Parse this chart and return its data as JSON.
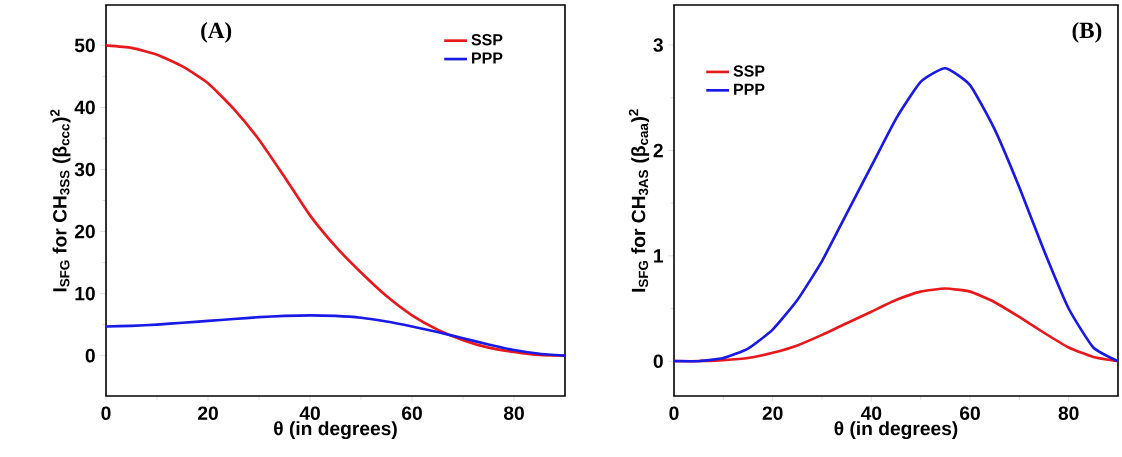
{
  "chart_data": [
    {
      "type": "line",
      "xlabel": "θ (in degrees)",
      "ylabel": "I$_{SFG}$ for CH$_{3SS}$ (β$_{ccc}$)$^{2}$",
      "annotations": [
        "(A)"
      ],
      "x": [
        0,
        5,
        10,
        15,
        20,
        25,
        30,
        35,
        40,
        45,
        50,
        55,
        60,
        65,
        70,
        75,
        80,
        85,
        90
      ],
      "series": [
        {
          "name": "SSP",
          "color": "#e8191c",
          "values": [
            50,
            49.6,
            48.5,
            46.6,
            43.9,
            39.8,
            34.8,
            28.8,
            22.6,
            17.6,
            13.4,
            9.6,
            6.5,
            4.2,
            2.5,
            1.3,
            0.6,
            0.1,
            0
          ]
        },
        {
          "name": "PPP",
          "color": "#1a1ae6",
          "values": [
            4.7,
            4.8,
            5.0,
            5.3,
            5.6,
            5.9,
            6.2,
            6.4,
            6.5,
            6.4,
            6.1,
            5.5,
            4.7,
            3.8,
            2.8,
            1.8,
            0.9,
            0.3,
            0
          ]
        }
      ],
      "xlim": [
        0,
        90
      ],
      "ylim": [
        -6.5,
        56.5
      ],
      "xticks": [
        0,
        20,
        40,
        60,
        80
      ],
      "yticks": [
        0,
        10,
        20,
        30,
        40,
        50
      ],
      "legend": "top right"
    },
    {
      "type": "line",
      "xlabel": "θ (in degrees)",
      "ylabel": "I$_{SFG}$ for CH$_{3AS}$ (β$_{caa}$)$^{2}$",
      "annotations": [
        "(B)"
      ],
      "x": [
        0,
        5,
        10,
        15,
        20,
        25,
        30,
        35,
        40,
        45,
        50,
        55,
        60,
        65,
        70,
        75,
        80,
        85,
        90
      ],
      "series": [
        {
          "name": "SSP",
          "color": "#e8191c",
          "values": [
            0,
            0,
            0.01,
            0.03,
            0.08,
            0.15,
            0.25,
            0.36,
            0.47,
            0.58,
            0.66,
            0.69,
            0.66,
            0.56,
            0.42,
            0.27,
            0.13,
            0.04,
            0
          ]
        },
        {
          "name": "PPP",
          "color": "#1a1ae6",
          "values": [
            0,
            0,
            0.03,
            0.12,
            0.3,
            0.58,
            0.95,
            1.4,
            1.85,
            2.3,
            2.65,
            2.78,
            2.62,
            2.2,
            1.65,
            1.05,
            0.5,
            0.13,
            0
          ]
        }
      ],
      "xlim": [
        0,
        90
      ],
      "ylim": [
        -0.33,
        3.38
      ],
      "xticks": [
        0,
        20,
        40,
        60,
        80
      ],
      "yticks": [
        0,
        1,
        2,
        3
      ],
      "legend": "top left"
    }
  ]
}
